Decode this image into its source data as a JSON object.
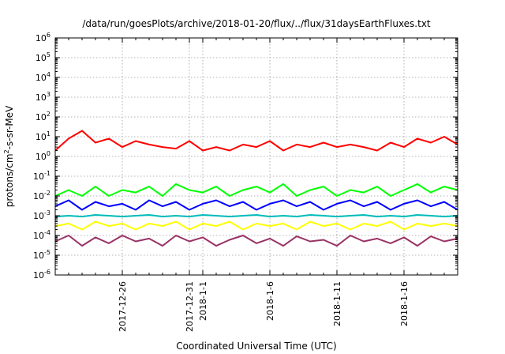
{
  "chart_data": {
    "type": "line",
    "title": "/data/run/goesPlots/archive/2018-01-20/flux/../flux/31daysEarthFluxes.txt",
    "xlabel": "Coordinated Universal Time (UTC)",
    "ylabel": "protons/cm²-s-sr-MeV",
    "yscale": "log",
    "ylim": [
      1e-06,
      1000000.0
    ],
    "y_ticks": [
      {
        "value": 1e-06,
        "base": "10",
        "exp": "-6"
      },
      {
        "value": 1e-05,
        "base": "10",
        "exp": "-5"
      },
      {
        "value": 0.0001,
        "base": "10",
        "exp": "-4"
      },
      {
        "value": 0.001,
        "base": "10",
        "exp": "-3"
      },
      {
        "value": 0.01,
        "base": "10",
        "exp": "-2"
      },
      {
        "value": 0.1,
        "base": "10",
        "exp": "-1"
      },
      {
        "value": 1.0,
        "base": "10",
        "exp": "0"
      },
      {
        "value": 10.0,
        "base": "10",
        "exp": "1"
      },
      {
        "value": 100.0,
        "base": "10",
        "exp": "2"
      },
      {
        "value": 1000.0,
        "base": "10",
        "exp": "3"
      },
      {
        "value": 10000.0,
        "base": "10",
        "exp": "4"
      },
      {
        "value": 100000.0,
        "base": "10",
        "exp": "5"
      },
      {
        "value": 1000000.0,
        "base": "10",
        "exp": "6"
      }
    ],
    "xlim": [
      "2017-12-21",
      "2018-01-20"
    ],
    "x_ticks": [
      {
        "label": "2017-12-26",
        "date": "2017-12-26"
      },
      {
        "label": "2017-12-31",
        "date": "2017-12-31"
      },
      {
        "label": "2018-1-1",
        "date": "2018-01-01"
      },
      {
        "label": "2018-1-6",
        "date": "2018-01-06"
      },
      {
        "label": "2018-1-11",
        "date": "2018-01-11"
      },
      {
        "label": "2018-1-16",
        "date": "2018-01-16"
      }
    ],
    "grid": true,
    "series": [
      {
        "color": "#ff0000",
        "dates": [
          "2017-12-21",
          "2017-12-22",
          "2017-12-23",
          "2017-12-24",
          "2017-12-25",
          "2017-12-26",
          "2017-12-27",
          "2017-12-28",
          "2017-12-29",
          "2017-12-30",
          "2017-12-31",
          "2018-01-01",
          "2018-01-02",
          "2018-01-03",
          "2018-01-04",
          "2018-01-05",
          "2018-01-06",
          "2018-01-07",
          "2018-01-08",
          "2018-01-09",
          "2018-01-10",
          "2018-01-11",
          "2018-01-12",
          "2018-01-13",
          "2018-01-14",
          "2018-01-15",
          "2018-01-16",
          "2018-01-17",
          "2018-01-18",
          "2018-01-19",
          "2018-01-20"
        ],
        "values": [
          2,
          8,
          20,
          5,
          8,
          3,
          6,
          4,
          3,
          2.5,
          6,
          2,
          3,
          2,
          4,
          3,
          6,
          2,
          4,
          3,
          5,
          3,
          4,
          3,
          2,
          5,
          3,
          8,
          5,
          10,
          4
        ]
      },
      {
        "color": "#00ff00",
        "dates": [
          "2017-12-21",
          "2017-12-22",
          "2017-12-23",
          "2017-12-24",
          "2017-12-25",
          "2017-12-26",
          "2017-12-27",
          "2017-12-28",
          "2017-12-29",
          "2017-12-30",
          "2017-12-31",
          "2018-01-01",
          "2018-01-02",
          "2018-01-03",
          "2018-01-04",
          "2018-01-05",
          "2018-01-06",
          "2018-01-07",
          "2018-01-08",
          "2018-01-09",
          "2018-01-10",
          "2018-01-11",
          "2018-01-12",
          "2018-01-13",
          "2018-01-14",
          "2018-01-15",
          "2018-01-16",
          "2018-01-17",
          "2018-01-18",
          "2018-01-19",
          "2018-01-20"
        ],
        "values": [
          0.01,
          0.02,
          0.01,
          0.03,
          0.01,
          0.02,
          0.015,
          0.03,
          0.01,
          0.04,
          0.02,
          0.015,
          0.03,
          0.01,
          0.02,
          0.03,
          0.015,
          0.04,
          0.01,
          0.02,
          0.03,
          0.01,
          0.02,
          0.015,
          0.03,
          0.01,
          0.02,
          0.04,
          0.015,
          0.03,
          0.02
        ]
      },
      {
        "color": "#0000ff",
        "dates": [
          "2017-12-21",
          "2017-12-22",
          "2017-12-23",
          "2017-12-24",
          "2017-12-25",
          "2017-12-26",
          "2017-12-27",
          "2017-12-28",
          "2017-12-29",
          "2017-12-30",
          "2017-12-31",
          "2018-01-01",
          "2018-01-02",
          "2018-01-03",
          "2018-01-04",
          "2018-01-05",
          "2018-01-06",
          "2018-01-07",
          "2018-01-08",
          "2018-01-09",
          "2018-01-10",
          "2018-01-11",
          "2018-01-12",
          "2018-01-13",
          "2018-01-14",
          "2018-01-15",
          "2018-01-16",
          "2018-01-17",
          "2018-01-18",
          "2018-01-19",
          "2018-01-20"
        ],
        "values": [
          0.003,
          0.006,
          0.002,
          0.005,
          0.003,
          0.004,
          0.002,
          0.006,
          0.003,
          0.005,
          0.002,
          0.004,
          0.006,
          0.003,
          0.005,
          0.002,
          0.004,
          0.006,
          0.003,
          0.005,
          0.002,
          0.004,
          0.006,
          0.003,
          0.005,
          0.002,
          0.004,
          0.006,
          0.003,
          0.005,
          0.002
        ]
      },
      {
        "color": "#00bbbb",
        "dates": [
          "2017-12-21",
          "2017-12-22",
          "2017-12-23",
          "2017-12-24",
          "2017-12-25",
          "2017-12-26",
          "2017-12-27",
          "2017-12-28",
          "2017-12-29",
          "2017-12-30",
          "2017-12-31",
          "2018-01-01",
          "2018-01-02",
          "2018-01-03",
          "2018-01-04",
          "2018-01-05",
          "2018-01-06",
          "2018-01-07",
          "2018-01-08",
          "2018-01-09",
          "2018-01-10",
          "2018-01-11",
          "2018-01-12",
          "2018-01-13",
          "2018-01-14",
          "2018-01-15",
          "2018-01-16",
          "2018-01-17",
          "2018-01-18",
          "2018-01-19",
          "2018-01-20"
        ],
        "values": [
          0.0009,
          0.001,
          0.0009,
          0.0011,
          0.001,
          0.0009,
          0.001,
          0.0011,
          0.0009,
          0.001,
          0.0009,
          0.0011,
          0.001,
          0.0009,
          0.001,
          0.0011,
          0.0009,
          0.001,
          0.0009,
          0.0011,
          0.001,
          0.0009,
          0.001,
          0.0011,
          0.0009,
          0.001,
          0.0009,
          0.0011,
          0.001,
          0.0009,
          0.001
        ]
      },
      {
        "color": "#ffff00",
        "dates": [
          "2017-12-21",
          "2017-12-22",
          "2017-12-23",
          "2017-12-24",
          "2017-12-25",
          "2017-12-26",
          "2017-12-27",
          "2017-12-28",
          "2017-12-29",
          "2017-12-30",
          "2017-12-31",
          "2018-01-01",
          "2018-01-02",
          "2018-01-03",
          "2018-01-04",
          "2018-01-05",
          "2018-01-06",
          "2018-01-07",
          "2018-01-08",
          "2018-01-09",
          "2018-01-10",
          "2018-01-11",
          "2018-01-12",
          "2018-01-13",
          "2018-01-14",
          "2018-01-15",
          "2018-01-16",
          "2018-01-17",
          "2018-01-18",
          "2018-01-19",
          "2018-01-20"
        ],
        "values": [
          0.0003,
          0.0004,
          0.0002,
          0.0005,
          0.0003,
          0.0004,
          0.0002,
          0.0004,
          0.0003,
          0.0005,
          0.0002,
          0.0004,
          0.0003,
          0.0005,
          0.0002,
          0.0004,
          0.0003,
          0.0004,
          0.0002,
          0.0005,
          0.0003,
          0.0004,
          0.0002,
          0.0004,
          0.0003,
          0.0005,
          0.0002,
          0.0004,
          0.0003,
          0.0004,
          0.0003
        ]
      },
      {
        "color": "#993366",
        "dates": [
          "2017-12-21",
          "2017-12-22",
          "2017-12-23",
          "2017-12-24",
          "2017-12-25",
          "2017-12-26",
          "2017-12-27",
          "2017-12-28",
          "2017-12-29",
          "2017-12-30",
          "2017-12-31",
          "2018-01-01",
          "2018-01-02",
          "2018-01-03",
          "2018-01-04",
          "2018-01-05",
          "2018-01-06",
          "2018-01-07",
          "2018-01-08",
          "2018-01-09",
          "2018-01-10",
          "2018-01-11",
          "2018-01-12",
          "2018-01-13",
          "2018-01-14",
          "2018-01-15",
          "2018-01-16",
          "2018-01-17",
          "2018-01-18",
          "2018-01-19",
          "2018-01-20"
        ],
        "values": [
          5e-05,
          0.0001,
          3e-05,
          8e-05,
          4e-05,
          0.0001,
          5e-05,
          7e-05,
          3e-05,
          0.0001,
          5e-05,
          8e-05,
          3e-05,
          6e-05,
          0.0001,
          4e-05,
          7e-05,
          3e-05,
          9e-05,
          5e-05,
          6e-05,
          3e-05,
          0.0001,
          5e-05,
          7e-05,
          4e-05,
          8e-05,
          3e-05,
          9e-05,
          5e-05,
          7e-05
        ]
      }
    ]
  }
}
